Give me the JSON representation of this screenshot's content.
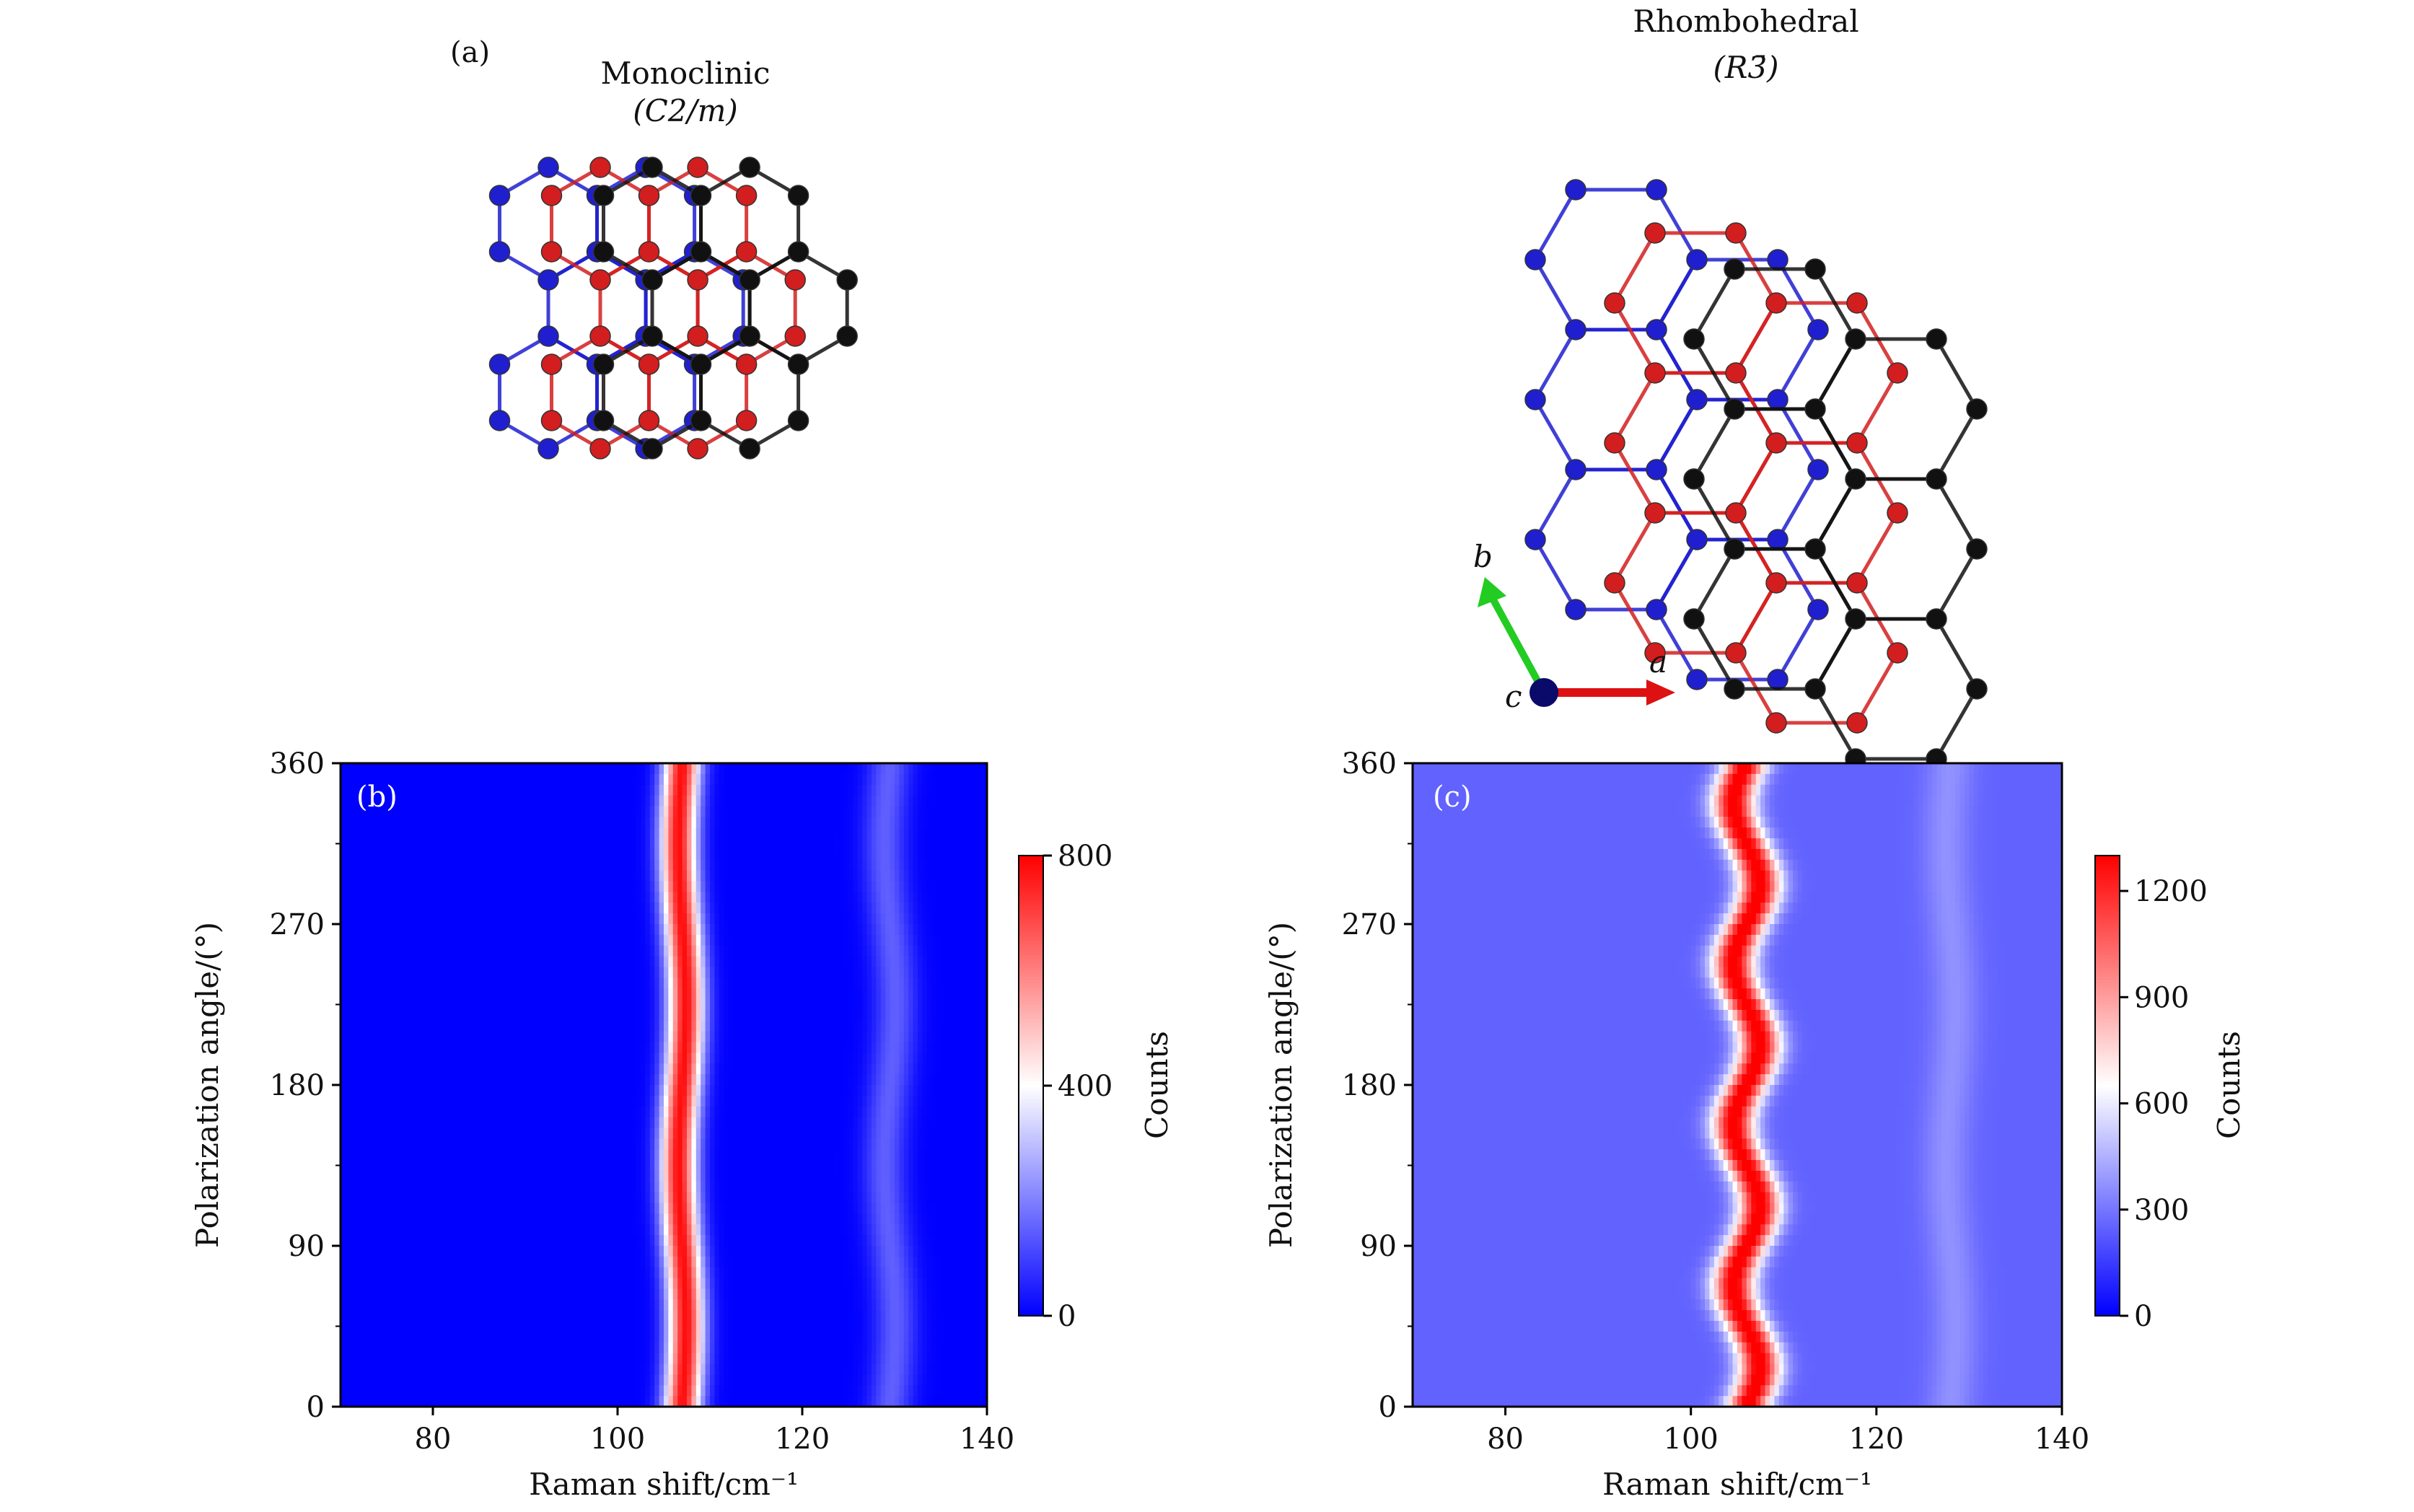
{
  "panel_a": {
    "label": "(a)",
    "left": {
      "name": "Monoclinic",
      "space_group": "(C2/m)"
    },
    "right": {
      "name": "Rhombohedral",
      "space_group": "(R3̄)"
    },
    "axes": {
      "a": "a",
      "b": "b",
      "c": "c"
    },
    "colors": {
      "layer1": "#1f1fd0",
      "layer2": "#d21e1e",
      "layer3": "#111111",
      "b_axis": "#22cc22",
      "a_axis": "#dd1111",
      "c_axis": "#0a0a6a"
    }
  },
  "chart_data": [
    {
      "type": "heatmap",
      "label": "(b)",
      "title": "",
      "xlabel": "Raman shift/cm⁻¹",
      "ylabel": "Polarization angle/(°)",
      "xlim": [
        70,
        140
      ],
      "ylim": [
        0,
        360
      ],
      "xticks": [
        80,
        100,
        120,
        140
      ],
      "yticks": [
        0,
        90,
        180,
        270,
        360
      ],
      "peaks": [
        {
          "center": 107,
          "width": 1.4,
          "amplitude": 780,
          "wobble": 0.4,
          "period": 180
        },
        {
          "center": 129.5,
          "width": 1.6,
          "amplitude": 150,
          "wobble": 0.6,
          "period": 180
        }
      ],
      "background": 0,
      "colorbar": {
        "label": "Counts",
        "min": 0,
        "max": 800,
        "ticks": [
          0,
          400,
          800
        ]
      }
    },
    {
      "type": "heatmap",
      "label": "(c)",
      "title": "",
      "xlabel": "Raman shift/cm⁻¹",
      "ylabel": "Polarization angle/(°)",
      "xlim": [
        70,
        140
      ],
      "ylim": [
        0,
        360
      ],
      "xticks": [
        80,
        100,
        120,
        140
      ],
      "yticks": [
        0,
        90,
        180,
        270,
        360
      ],
      "peaks": [
        {
          "center": 106,
          "width": 1.6,
          "amplitude": 1100,
          "wobble": 1.4,
          "period": 90
        },
        {
          "center": 128,
          "width": 1.8,
          "amplitude": 120,
          "wobble": 0.5,
          "period": 180
        }
      ],
      "background": 250,
      "colorbar": {
        "label": "Counts",
        "min": 0,
        "max": 1300,
        "ticks": [
          0,
          300,
          600,
          900,
          1200
        ]
      }
    }
  ],
  "colormap": {
    "low": "#0000ff",
    "mid": "#ffffff",
    "high": "#ff0000"
  }
}
